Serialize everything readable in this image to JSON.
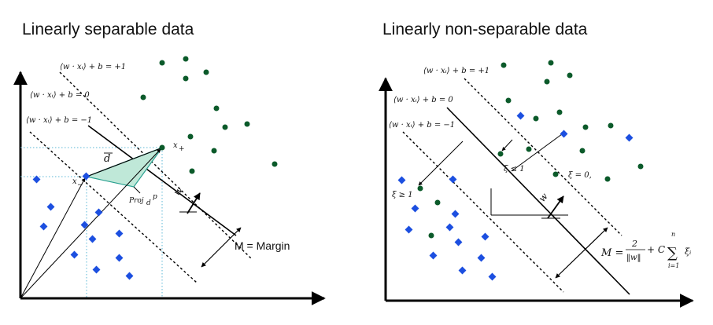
{
  "left_panel": {
    "title": "Linearly separable data",
    "eq_plus": "⟨w · xᵢ⟩ + b = +1",
    "eq_zero": "⟨w · xᵢ⟩ + b = 0",
    "eq_minus": "⟨w · xᵢ⟩ + b = −1",
    "margin_label": "M = Margin",
    "vec_x_plus": "x",
    "vec_x_plus_sub": "+",
    "vec_x_minus": "x",
    "vec_x_minus_sub": "−",
    "vec_d": "d",
    "proj_label": "Proj",
    "proj_sub": "d",
    "proj_sup": "p",
    "w_label": "w"
  },
  "right_panel": {
    "title": "Linearly non-separable data",
    "eq_plus": "⟨w · xᵢ⟩ + b = +1",
    "eq_zero": "⟨w · xᵢ⟩ + b = 0",
    "eq_minus": "⟨w · xᵢ⟩ + b = −1",
    "xi_ge_1": "ξ ≥ 1",
    "xi_le_1": "ξ ≤ 1",
    "xi_0": "ξ = 0,",
    "w_label": "w",
    "margin_formula_lhs": "M =",
    "margin_formula_num": "2",
    "margin_formula_den": "‖w‖",
    "margin_formula_plus": "+ C",
    "margin_formula_sum": "∑",
    "margin_formula_sum_top": "n",
    "margin_formula_sum_bottom": "i=1",
    "margin_formula_xi": "ξᵢ"
  },
  "colors": {
    "green_point": "#0b5a2a",
    "blue_point": "#1c4fe0",
    "triangle_fill": "#bfe8d8",
    "triangle_stroke": "#2aa090",
    "grid_dotted": "#5bb7d6",
    "ink": "#000000"
  }
}
